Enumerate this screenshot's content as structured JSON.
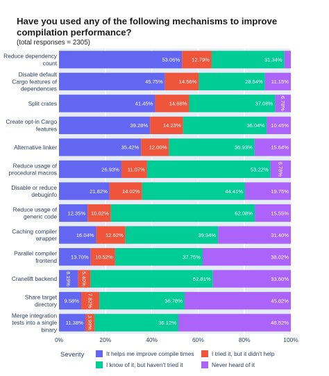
{
  "chart_data": {
    "type": "bar",
    "orientation": "horizontal",
    "stacked": true,
    "title": "Have you used any of the following mechanisms to improve compilation performance?",
    "subtitle": "(total responses = 2305)",
    "xlim": [
      0,
      100
    ],
    "x_ticks": [
      "0%",
      "20%",
      "40%",
      "60%",
      "80%",
      "100%"
    ],
    "grid": true,
    "legend_title": "Severity",
    "legend_position": "bottom",
    "categories": [
      [
        "Reduce dependency",
        "count"
      ],
      [
        "Disable default",
        "Cargo features of",
        "dependencies"
      ],
      [
        "Split crates"
      ],
      [
        "Create opt-in Cargo",
        "features"
      ],
      [
        "Alternative linker"
      ],
      [
        "Reduce usage of",
        "procedural macros"
      ],
      [
        "Disable or reduce",
        "debuginfo"
      ],
      [
        "Reduce usage of",
        "generic code"
      ],
      [
        "Caching compiler",
        "wrapper"
      ],
      [
        "Parallel compiler",
        "frontend"
      ],
      [
        "Cranelift backend"
      ],
      [
        "Share target",
        "directory"
      ],
      [
        "Merge integration",
        "tests into a single",
        "binary"
      ]
    ],
    "series": [
      {
        "name": "It helps me improve compile times",
        "color": "#6366f1",
        "values": [
          53.06,
          45.75,
          41.45,
          39.28,
          35.42,
          26.93,
          21.82,
          12.35,
          16.04,
          13.7,
          8.19,
          9.58,
          11.38
        ],
        "labels": [
          "53.06%",
          "45.75%",
          "41.45%",
          "39.28%",
          "35.42%",
          "26.93%",
          "21.82%",
          "12.35%",
          "16.04%",
          "13.70%",
          "8.19%",
          "9.58%",
          "11.38%"
        ]
      },
      {
        "name": "I tried it, but it didn't help",
        "color": "#ef553b",
        "values": [
          12.79,
          14.56,
          14.68,
          14.23,
          12.0,
          11.07,
          14.02,
          10.02,
          12.62,
          10.52,
          5.4,
          7.82,
          3.99
        ],
        "labels": [
          "12.79%",
          "14.56%",
          "14.68%",
          "14.23%",
          "12.00%",
          "11.07%",
          "14.02%",
          "10.02%",
          "12.62%",
          "10.52%",
          "5.40%",
          "7.82%",
          "3.99%"
        ]
      },
      {
        "name": "I know of it, but haven't tried it",
        "color": "#00cc96",
        "values": [
          31.34,
          28.54,
          37.08,
          36.04,
          36.93,
          53.22,
          44.41,
          62.08,
          39.94,
          37.75,
          52.81,
          36.78,
          36.12
        ],
        "labels": [
          "31.34%",
          "28.54%",
          "37.08%",
          "36.04%",
          "36.93%",
          "53.22%",
          "44.41%",
          "62.08%",
          "39.94%",
          "37.75%",
          "52.81%",
          "36.78%",
          "36.12%"
        ]
      },
      {
        "name": "Never heard of it",
        "color": "#ab63fa",
        "values": [
          2.81,
          11.15,
          6.78,
          10.45,
          15.64,
          8.78,
          19.75,
          15.55,
          31.4,
          38.02,
          33.6,
          45.82,
          48.52
        ],
        "labels": [
          "",
          "11.15%",
          "6.78%",
          "10.45%",
          "15.64%",
          "8.78%",
          "19.75%",
          "15.55%",
          "31.40%",
          "38.02%",
          "33.60%",
          "45.82%",
          "48.52%"
        ]
      }
    ]
  }
}
